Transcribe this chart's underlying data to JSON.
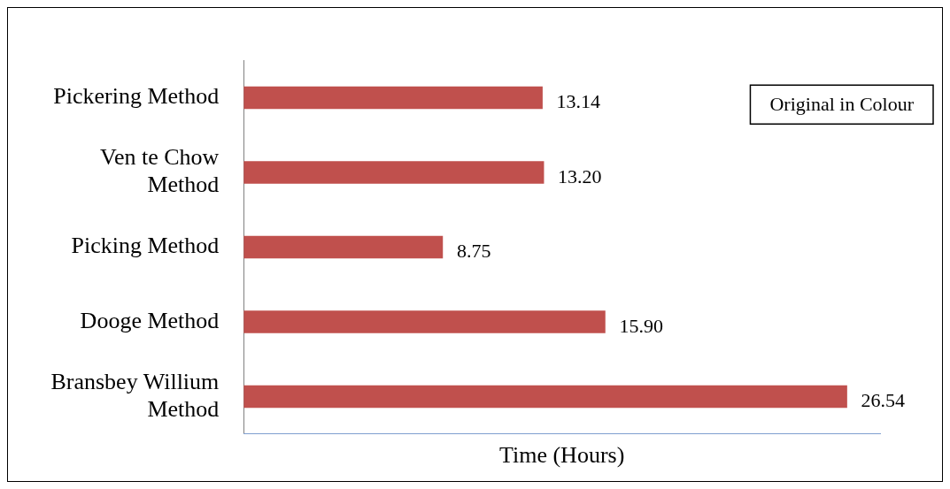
{
  "chart_data": {
    "type": "bar",
    "orientation": "horizontal",
    "categories": [
      "Pickering Method",
      "Ven te Chow Method",
      "Picking Method",
      "Dooge Method",
      "Bransbey Willium Method"
    ],
    "values": [
      13.14,
      13.2,
      8.75,
      15.9,
      26.54
    ],
    "color": "#c0504d",
    "xlim": [
      0,
      28
    ],
    "tick_labels": "y",
    "xlabel": "Time (Hours)",
    "value_labels": [
      "13.14",
      "13.20",
      "8.75",
      "15.90",
      "26.54"
    ],
    "legend": false,
    "annotations": [
      "Original in Colour"
    ]
  }
}
